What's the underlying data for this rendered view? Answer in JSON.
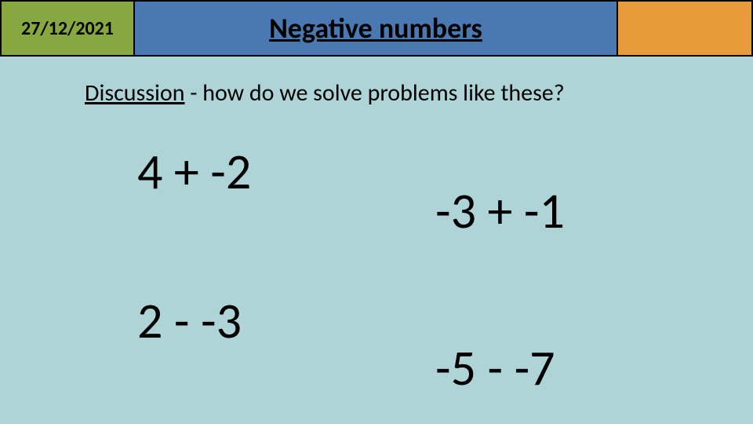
{
  "header": {
    "date": "27/12/2021",
    "title": "Negative numbers",
    "date_box_color": "#87a840",
    "title_box_color": "#4a78b0",
    "right_box_color": "#e79b3a",
    "border_color": "#000000",
    "date_fontsize": 24,
    "title_fontsize": 36
  },
  "background_color": "#aed4d8",
  "discussion": {
    "label": "Discussion",
    "text": " - how do we solve problems like these?",
    "fontsize": 30
  },
  "expressions": {
    "fontsize": 64,
    "items": [
      {
        "id": "e1",
        "text": "4 + -2"
      },
      {
        "id": "e2",
        "text": "-3 + -1"
      },
      {
        "id": "e3",
        "text": "2 - -3"
      },
      {
        "id": "e4",
        "text": "-5 - -7"
      }
    ]
  }
}
